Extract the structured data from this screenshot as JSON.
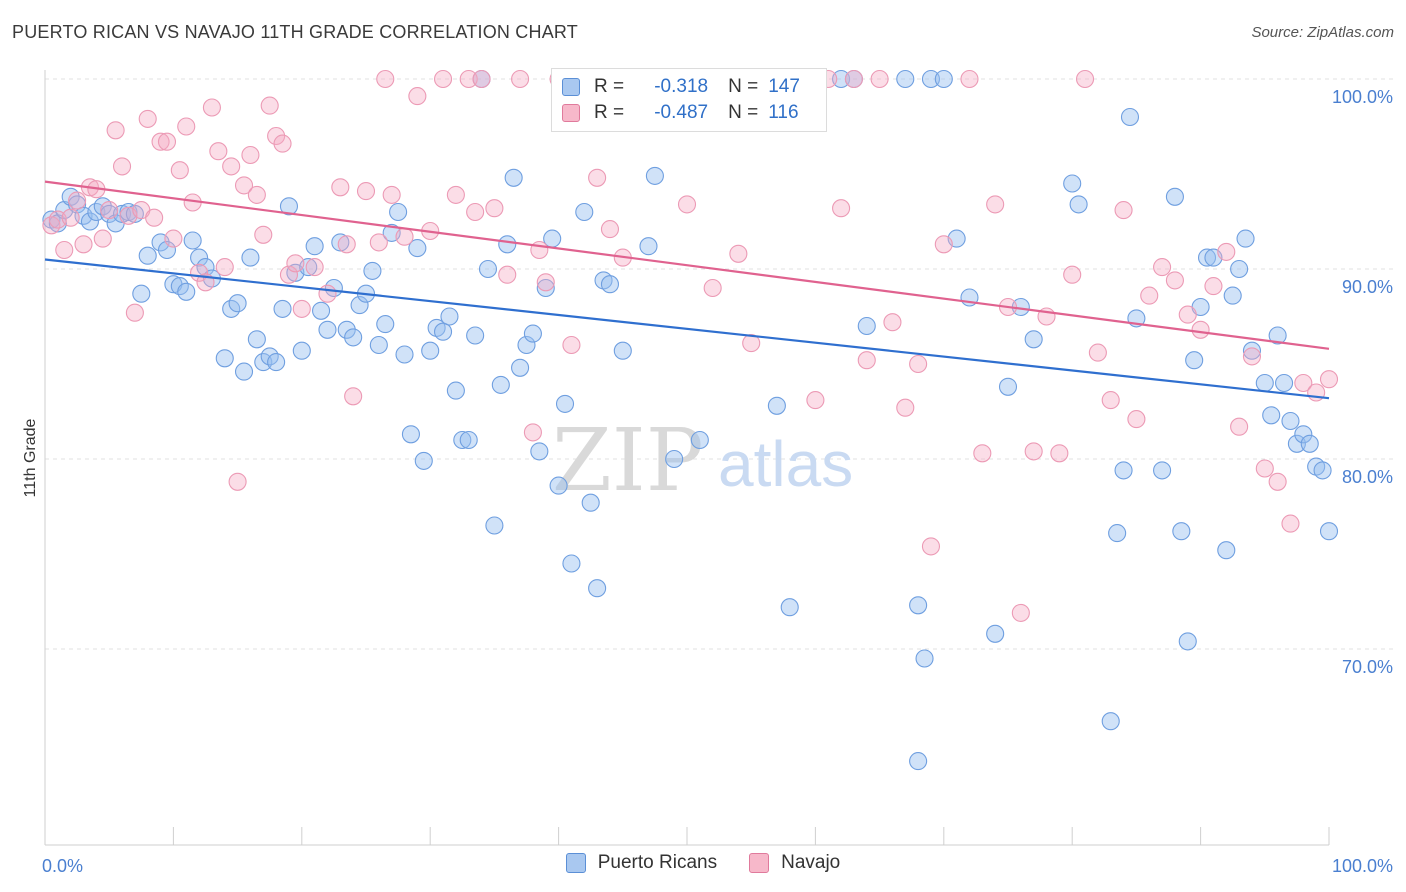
{
  "title": "PUERTO RICAN VS NAVAJO 11TH GRADE CORRELATION CHART",
  "source": "Source: ZipAtlas.com",
  "watermark": {
    "zip": "ZIP",
    "atlas": "atlas"
  },
  "legend_top": {
    "rows": [
      {
        "r_label": "R =",
        "r_value": "-0.318",
        "n_label": "N =",
        "n_value": "147",
        "color": "#a9c8f0",
        "border": "#5b8fd6"
      },
      {
        "r_label": "R =",
        "r_value": "-0.487",
        "n_label": "N =",
        "n_value": "116",
        "color": "#f7b8ca",
        "border": "#e07a9c"
      }
    ]
  },
  "legend_bottom": [
    {
      "label": "Puerto Ricans",
      "color": "#a9c8f0",
      "border": "#5b8fd6"
    },
    {
      "label": "Navajo",
      "color": "#f7b8ca",
      "border": "#e07a9c"
    }
  ],
  "chart_data": {
    "type": "scatter",
    "title": "PUERTO RICAN VS NAVAJO 11TH GRADE CORRELATION CHART",
    "xlabel": "",
    "ylabel": "11th Grade",
    "xlim": [
      0,
      100
    ],
    "ylim": [
      60.5,
      101
    ],
    "x_tick_labels": [
      "0.0%",
      "100.0%"
    ],
    "y_ticks": [
      70,
      80,
      90,
      100
    ],
    "y_tick_labels": [
      "70.0%",
      "80.0%",
      "90.0%",
      "100.0%"
    ],
    "grid": true,
    "series": [
      {
        "name": "Puerto Ricans",
        "color": "#7aa6e4",
        "line_color": "#2f6fcf",
        "trend": {
          "x": [
            0,
            100
          ],
          "y": [
            90.5,
            83.2
          ]
        },
        "points": [
          [
            0.5,
            92.6
          ],
          [
            1,
            92.4
          ],
          [
            1.5,
            93.1
          ],
          [
            2,
            93.8
          ],
          [
            2.5,
            93.4
          ],
          [
            3,
            92.8
          ],
          [
            3.5,
            92.5
          ],
          [
            4,
            93
          ],
          [
            4.5,
            93.3
          ],
          [
            5,
            92.9
          ],
          [
            5.5,
            92.4
          ],
          [
            6,
            92.9
          ],
          [
            6.5,
            93
          ],
          [
            7,
            92.9
          ],
          [
            7.5,
            88.7
          ],
          [
            8,
            90.7
          ],
          [
            9,
            91.4
          ],
          [
            9.5,
            91
          ],
          [
            10,
            89.2
          ],
          [
            10.5,
            89.1
          ],
          [
            11,
            88.8
          ],
          [
            11.5,
            91.5
          ],
          [
            12,
            90.6
          ],
          [
            12.5,
            90.1
          ],
          [
            13,
            89.5
          ],
          [
            14,
            85.3
          ],
          [
            14.5,
            87.9
          ],
          [
            15,
            88.2
          ],
          [
            15.5,
            84.6
          ],
          [
            16,
            90.6
          ],
          [
            16.5,
            86.3
          ],
          [
            17,
            85.1
          ],
          [
            17.5,
            85.4
          ],
          [
            18,
            85.1
          ],
          [
            18.5,
            87.9
          ],
          [
            19,
            93.3
          ],
          [
            19.5,
            89.8
          ],
          [
            20,
            85.7
          ],
          [
            20.5,
            90.1
          ],
          [
            21,
            91.2
          ],
          [
            21.5,
            87.8
          ],
          [
            22,
            86.8
          ],
          [
            22.5,
            89
          ],
          [
            23,
            91.4
          ],
          [
            23.5,
            86.8
          ],
          [
            24,
            86.4
          ],
          [
            24.5,
            88.1
          ],
          [
            25,
            88.7
          ],
          [
            25.5,
            89.9
          ],
          [
            26,
            86
          ],
          [
            26.5,
            87.1
          ],
          [
            27,
            91.9
          ],
          [
            27.5,
            93
          ],
          [
            28,
            85.5
          ],
          [
            28.5,
            81.3
          ],
          [
            29,
            91.1
          ],
          [
            29.5,
            79.9
          ],
          [
            30,
            85.7
          ],
          [
            30.5,
            86.9
          ],
          [
            31,
            86.7
          ],
          [
            31.5,
            87.5
          ],
          [
            32,
            83.6
          ],
          [
            32.5,
            81
          ],
          [
            33,
            81
          ],
          [
            33.5,
            86.5
          ],
          [
            34,
            100
          ],
          [
            34.5,
            90
          ],
          [
            35,
            76.5
          ],
          [
            35.5,
            83.9
          ],
          [
            36,
            91.3
          ],
          [
            36.5,
            94.8
          ],
          [
            37,
            84.8
          ],
          [
            37.5,
            86
          ],
          [
            38,
            86.6
          ],
          [
            38.5,
            80.4
          ],
          [
            39,
            89
          ],
          [
            39.5,
            91.6
          ],
          [
            40,
            78.6
          ],
          [
            40.5,
            82.9
          ],
          [
            41,
            74.5
          ],
          [
            42,
            93
          ],
          [
            42.5,
            77.7
          ],
          [
            43,
            73.2
          ],
          [
            43.5,
            89.4
          ],
          [
            44,
            89.2
          ],
          [
            45,
            85.7
          ],
          [
            46,
            99.1
          ],
          [
            47,
            91.2
          ],
          [
            47.5,
            94.9
          ],
          [
            49,
            80
          ],
          [
            51,
            81
          ],
          [
            56,
            100
          ],
          [
            57,
            82.8
          ],
          [
            58,
            72.2
          ],
          [
            62,
            100
          ],
          [
            63,
            100
          ],
          [
            64,
            87
          ],
          [
            67,
            100
          ],
          [
            68,
            72.3
          ],
          [
            68.5,
            69.5
          ],
          [
            68,
            64.1
          ],
          [
            69,
            100
          ],
          [
            70,
            100
          ],
          [
            71,
            91.6
          ],
          [
            72,
            88.5
          ],
          [
            74,
            70.8
          ],
          [
            75,
            83.8
          ],
          [
            76,
            88
          ],
          [
            77,
            86.3
          ],
          [
            80,
            94.5
          ],
          [
            80.5,
            93.4
          ],
          [
            83,
            66.2
          ],
          [
            83.5,
            76.1
          ],
          [
            84,
            79.4
          ],
          [
            84.5,
            98
          ],
          [
            85,
            87.4
          ],
          [
            87,
            79.4
          ],
          [
            88,
            93.8
          ],
          [
            88.5,
            76.2
          ],
          [
            89,
            70.4
          ],
          [
            89.5,
            85.2
          ],
          [
            90,
            88
          ],
          [
            90.5,
            90.6
          ],
          [
            91,
            90.6
          ],
          [
            92,
            75.2
          ],
          [
            92.5,
            88.6
          ],
          [
            93,
            90
          ],
          [
            93.5,
            91.6
          ],
          [
            94,
            85.7
          ],
          [
            95,
            84
          ],
          [
            95.5,
            82.3
          ],
          [
            96,
            86.5
          ],
          [
            96.5,
            84
          ],
          [
            97,
            82
          ],
          [
            97.5,
            80.8
          ],
          [
            98,
            81.3
          ],
          [
            98.5,
            80.8
          ],
          [
            99,
            79.6
          ],
          [
            99.5,
            79.4
          ],
          [
            100,
            76.2
          ]
        ]
      },
      {
        "name": "Navajo",
        "color": "#f0a0b8",
        "line_color": "#e0628f",
        "trend": {
          "x": [
            0,
            100
          ],
          "y": [
            94.6,
            85.8
          ]
        },
        "points": [
          [
            0.5,
            92.3
          ],
          [
            1,
            92.6
          ],
          [
            1.5,
            91
          ],
          [
            2,
            92.7
          ],
          [
            2.5,
            93.6
          ],
          [
            3,
            91.3
          ],
          [
            3.5,
            94.3
          ],
          [
            4,
            94.2
          ],
          [
            4.5,
            91.6
          ],
          [
            5,
            93.1
          ],
          [
            5.5,
            97.3
          ],
          [
            6,
            95.4
          ],
          [
            6.5,
            92.8
          ],
          [
            7,
            87.7
          ],
          [
            7.5,
            93.1
          ],
          [
            8,
            97.9
          ],
          [
            8.5,
            92.7
          ],
          [
            9,
            96.7
          ],
          [
            9.5,
            96.7
          ],
          [
            10,
            91.6
          ],
          [
            10.5,
            95.2
          ],
          [
            11,
            97.5
          ],
          [
            11.5,
            93.5
          ],
          [
            12,
            89.8
          ],
          [
            12.5,
            89.3
          ],
          [
            13,
            98.5
          ],
          [
            13.5,
            96.2
          ],
          [
            14,
            90.1
          ],
          [
            14.5,
            95.4
          ],
          [
            15,
            78.8
          ],
          [
            15.5,
            94.4
          ],
          [
            16,
            96
          ],
          [
            16.5,
            93.9
          ],
          [
            17,
            91.8
          ],
          [
            17.5,
            98.6
          ],
          [
            18,
            97
          ],
          [
            18.5,
            96.6
          ],
          [
            19,
            89.7
          ],
          [
            19.5,
            90.3
          ],
          [
            20,
            87.9
          ],
          [
            21,
            90.1
          ],
          [
            22,
            88.7
          ],
          [
            23,
            94.3
          ],
          [
            23.5,
            91.3
          ],
          [
            24,
            83.3
          ],
          [
            25,
            94.1
          ],
          [
            26,
            91.4
          ],
          [
            26.5,
            100
          ],
          [
            27,
            93.9
          ],
          [
            28,
            91.7
          ],
          [
            29,
            99.1
          ],
          [
            30,
            92
          ],
          [
            31,
            100
          ],
          [
            32,
            93.9
          ],
          [
            33,
            100
          ],
          [
            33.5,
            93
          ],
          [
            34,
            100
          ],
          [
            35,
            93.2
          ],
          [
            36,
            89.7
          ],
          [
            37,
            100
          ],
          [
            38,
            81.4
          ],
          [
            38.5,
            91
          ],
          [
            39,
            89.3
          ],
          [
            40,
            100
          ],
          [
            41,
            86
          ],
          [
            42,
            100
          ],
          [
            43,
            94.8
          ],
          [
            44,
            92.1
          ],
          [
            45,
            90.6
          ],
          [
            46,
            100
          ],
          [
            48,
            100
          ],
          [
            49,
            100
          ],
          [
            50,
            93.4
          ],
          [
            52,
            89
          ],
          [
            53,
            100
          ],
          [
            54,
            90.8
          ],
          [
            55,
            86.1
          ],
          [
            57,
            100
          ],
          [
            58,
            100
          ],
          [
            60,
            83.1
          ],
          [
            61,
            100
          ],
          [
            62,
            93.2
          ],
          [
            63,
            100
          ],
          [
            64,
            85.2
          ],
          [
            65,
            100
          ],
          [
            66,
            87.2
          ],
          [
            67,
            82.7
          ],
          [
            68,
            85
          ],
          [
            69,
            75.4
          ],
          [
            70,
            91.3
          ],
          [
            72,
            100
          ],
          [
            73,
            80.3
          ],
          [
            74,
            93.4
          ],
          [
            75,
            88
          ],
          [
            76,
            71.9
          ],
          [
            77,
            80.4
          ],
          [
            78,
            87.5
          ],
          [
            79,
            80.3
          ],
          [
            80,
            89.7
          ],
          [
            81,
            100
          ],
          [
            82,
            85.6
          ],
          [
            83,
            83.1
          ],
          [
            84,
            93.1
          ],
          [
            85,
            82.1
          ],
          [
            86,
            88.6
          ],
          [
            87,
            90.1
          ],
          [
            88,
            89.4
          ],
          [
            89,
            87.6
          ],
          [
            90,
            86.8
          ],
          [
            91,
            89.1
          ],
          [
            92,
            90.9
          ],
          [
            93,
            81.7
          ],
          [
            94,
            85.4
          ],
          [
            95,
            79.5
          ],
          [
            96,
            78.8
          ],
          [
            97,
            76.6
          ],
          [
            98,
            84
          ],
          [
            99,
            83.5
          ],
          [
            100,
            84.2
          ]
        ]
      }
    ]
  }
}
